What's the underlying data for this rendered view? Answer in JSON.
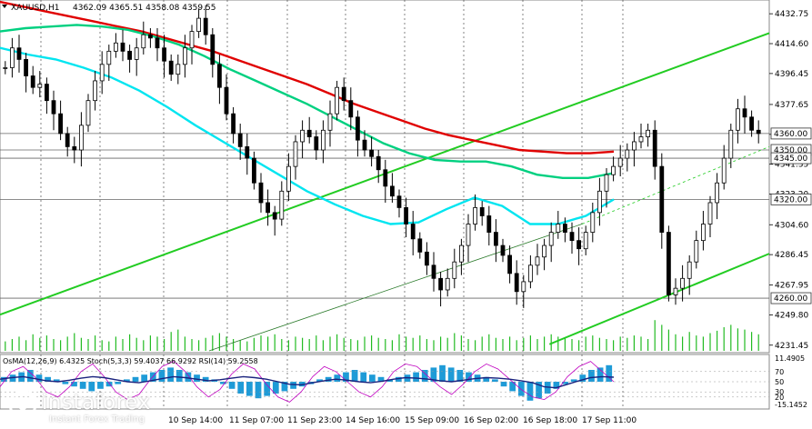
{
  "chart_data": [
    {
      "type": "candlestick",
      "header": {
        "symbol_line": "XAUUSD,H1",
        "ohlc_text": "4362.09 4365.51 4358.08 4359.55"
      },
      "ylim": [
        4228,
        4440
      ],
      "y_ticks": [
        "4432.75",
        "4414.60",
        "4396.45",
        "4377.65",
        "4359.50",
        "4341.35",
        "4323.20",
        "4304.60",
        "4286.45",
        "4267.95",
        "4249.80",
        "4231.45"
      ],
      "x_ticks": [
        "10 Sep 14:00",
        "11 Sep 07:00",
        "11 Sep 23:00",
        "14 Sep 16:00",
        "15 Sep 09:00",
        "16 Sep 02:00",
        "16 Sep 18:00",
        "17 Sep 11:00"
      ],
      "level_labels": [
        "4360.00",
        "4350.00",
        "4345.00",
        "4320.00",
        "4260.00"
      ],
      "levels": [
        4360,
        4350,
        4345,
        4320,
        4260
      ],
      "close_series": [
        4400,
        4412,
        4405,
        4395,
        4388,
        4390,
        4380,
        4372,
        4360,
        4352,
        4350,
        4365,
        4380,
        4392,
        4402,
        4410,
        4415,
        4410,
        4405,
        4412,
        4420,
        4418,
        4412,
        4404,
        4396,
        4402,
        4412,
        4422,
        4430,
        4420,
        4402,
        4388,
        4372,
        4360,
        4352,
        4345,
        4330,
        4318,
        4312,
        4308,
        4325,
        4340,
        4355,
        4362,
        4358,
        4350,
        4362,
        4372,
        4388,
        4380,
        4370,
        4356,
        4350,
        4346,
        4338,
        4328,
        4322,
        4315,
        4305,
        4296,
        4288,
        4280,
        4272,
        4265,
        4272,
        4282,
        4292,
        4305,
        4315,
        4310,
        4300,
        4292,
        4286,
        4275,
        4264,
        4270,
        4280,
        4285,
        4292,
        4300,
        4305,
        4300,
        4295,
        4290,
        4300,
        4312,
        4325,
        4335,
        4340,
        4345,
        4350,
        4355,
        4358,
        4362,
        4340,
        4300,
        4262,
        4266,
        4272,
        4282,
        4295,
        4305,
        4318,
        4330,
        4345,
        4362,
        4375,
        4370,
        4362,
        4360
      ],
      "ma_series": [
        {
          "color": "#e00000",
          "values": [
            4440,
            4437,
            4434,
            4431,
            4428,
            4425,
            4422,
            4418,
            4414,
            4410,
            4405,
            4400,
            4395,
            4390,
            4384,
            4378,
            4373,
            4368,
            4363,
            4359,
            4356,
            4353,
            4350,
            4349,
            4348,
            4348,
            4349
          ]
        },
        {
          "color": "#00d080",
          "values": [
            4422,
            4424,
            4425,
            4426,
            4425,
            4423,
            4419,
            4414,
            4407,
            4399,
            4392,
            4385,
            4378,
            4370,
            4362,
            4354,
            4348,
            4344,
            4343,
            4343,
            4340,
            4335,
            4333,
            4333,
            4336
          ]
        },
        {
          "color": "#00e5f0",
          "values": [
            4412,
            4408,
            4405,
            4400,
            4394,
            4386,
            4376,
            4365,
            4355,
            4345,
            4335,
            4325,
            4317,
            4310,
            4305,
            4306,
            4314,
            4321,
            4316,
            4305,
            4305,
            4310,
            4320
          ]
        }
      ],
      "volume_values": [
        8,
        10,
        12,
        9,
        14,
        11,
        13,
        10,
        9,
        12,
        15,
        11,
        10,
        13,
        9,
        8,
        12,
        10,
        14,
        11,
        9,
        13,
        12,
        10,
        16,
        18,
        12,
        10,
        9,
        11,
        13,
        15,
        12,
        10,
        9,
        8,
        11,
        13,
        12,
        14,
        10,
        9,
        12,
        11,
        10,
        13,
        9,
        12,
        14,
        11,
        10,
        9,
        12,
        13,
        11,
        10,
        9,
        14,
        12,
        11,
        13,
        10,
        9,
        12,
        11,
        15,
        13,
        10,
        9,
        12,
        14,
        11,
        10,
        12,
        9,
        11,
        13,
        10,
        12,
        14,
        12,
        11,
        10,
        9,
        12,
        13,
        11,
        10,
        9,
        12,
        11,
        13,
        12,
        10,
        26,
        22,
        18,
        14,
        12,
        16,
        13,
        12,
        15,
        17,
        20,
        22,
        19,
        18,
        16,
        14
      ],
      "channel_lines": [
        {
          "name": "",
          "color": "#22cc22",
          "points": [
            [
              0,
              4250
            ],
            [
              112,
              4421
            ]
          ]
        },
        {
          "name": "",
          "color": "#22cc22",
          "points": [
            [
              80,
              4232
            ],
            [
              112,
              4287
            ]
          ]
        }
      ]
    },
    {
      "type": "oscillator",
      "labels_text": "OsMA(12,26,9) 6.4325  Stoch(5,3,3) 59.4037 66.9292  RSI(14) 59.2558",
      "ylim": [
        -15.1452,
        11.4905
      ],
      "y_ticks": [
        "11.4905",
        "-15.1452"
      ],
      "level_ticks": [
        "70",
        "50",
        "30",
        "20"
      ],
      "histogram": [
        2,
        3,
        4,
        5,
        3,
        2,
        1,
        -1,
        -2,
        -3,
        -4,
        -3,
        -2,
        -1,
        1,
        2,
        3,
        4,
        5,
        6,
        5,
        4,
        3,
        2,
        1,
        -1,
        -3,
        -5,
        -6,
        -7,
        -6,
        -5,
        -4,
        -3,
        -2,
        -1,
        1,
        2,
        3,
        4,
        5,
        4,
        3,
        2,
        1,
        2,
        3,
        4,
        5,
        6,
        7,
        6,
        5,
        4,
        3,
        2,
        1,
        -2,
        -4,
        -6,
        -8,
        -7,
        -5,
        -3,
        -1,
        1,
        3,
        5,
        6,
        7
      ],
      "stoch_k": [
        40,
        70,
        80,
        60,
        30,
        20,
        40,
        70,
        85,
        60,
        30,
        15,
        25,
        55,
        80,
        90,
        70,
        40,
        20,
        35,
        65,
        85,
        75,
        45,
        20,
        10,
        30,
        60,
        80,
        70,
        50,
        30,
        20,
        40,
        70,
        85,
        80,
        60,
        40,
        25,
        45,
        70,
        85,
        75,
        55,
        35,
        20,
        15,
        30,
        60,
        80,
        90,
        70,
        50
      ],
      "rsi": [
        55,
        58,
        60,
        56,
        52,
        50,
        53,
        57,
        60,
        58,
        54,
        50,
        48,
        52,
        56,
        60,
        58,
        55,
        52,
        54,
        57,
        60,
        58,
        55,
        50,
        45,
        44,
        48,
        52,
        55,
        53,
        50,
        48,
        51,
        55,
        58,
        57,
        55,
        52,
        50,
        53,
        56,
        58,
        57,
        55,
        52,
        48,
        40,
        38,
        45,
        52,
        58,
        60,
        59
      ]
    }
  ]
}
